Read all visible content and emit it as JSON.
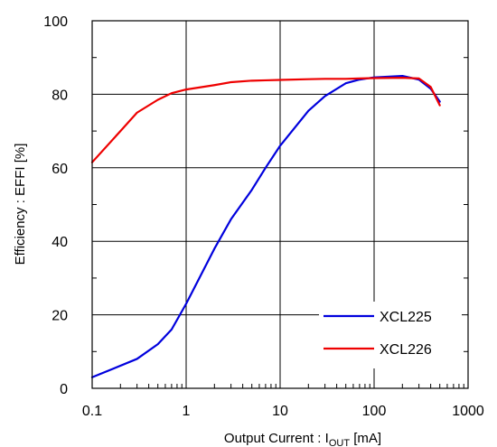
{
  "chart_data": {
    "type": "line",
    "xlabel": "Output Current : I",
    "xlabel_sub": "OUT",
    "xlabel_unit": " [mA]",
    "ylabel": "Efficiency : EFFI [%]",
    "x_scale": "log",
    "xlim": [
      0.1,
      1000
    ],
    "ylim": [
      0,
      100
    ],
    "x_ticks": [
      0.1,
      1,
      10,
      100,
      1000
    ],
    "x_tick_labels": [
      "0.1",
      "1",
      "10",
      "100",
      "1000"
    ],
    "y_ticks": [
      0,
      20,
      40,
      60,
      80,
      100
    ],
    "y_tick_labels": [
      "0",
      "20",
      "40",
      "60",
      "80",
      "100"
    ],
    "grid": true,
    "legend_position": "bottom-right",
    "series": [
      {
        "name": "XCL225",
        "color": "#0000dd",
        "x": [
          0.1,
          0.3,
          0.5,
          0.7,
          1,
          2,
          3,
          5,
          7,
          10,
          20,
          30,
          50,
          70,
          100,
          200,
          300,
          400,
          500
        ],
        "y": [
          3,
          8,
          12,
          16,
          23,
          38,
          46,
          54,
          60,
          66,
          75.5,
          79.5,
          83,
          84,
          84.6,
          85,
          84,
          81.5,
          78
        ]
      },
      {
        "name": "XCL226",
        "color": "#ee0000",
        "x": [
          0.1,
          0.2,
          0.3,
          0.5,
          0.7,
          1,
          2,
          3,
          5,
          7,
          10,
          20,
          30,
          50,
          70,
          100,
          200,
          300,
          400,
          500
        ],
        "y": [
          61.5,
          70,
          75,
          78.5,
          80.3,
          81.3,
          82.5,
          83.3,
          83.7,
          83.8,
          83.9,
          84.1,
          84.2,
          84.2,
          84.3,
          84.4,
          84.5,
          84.3,
          82,
          77
        ]
      }
    ]
  }
}
